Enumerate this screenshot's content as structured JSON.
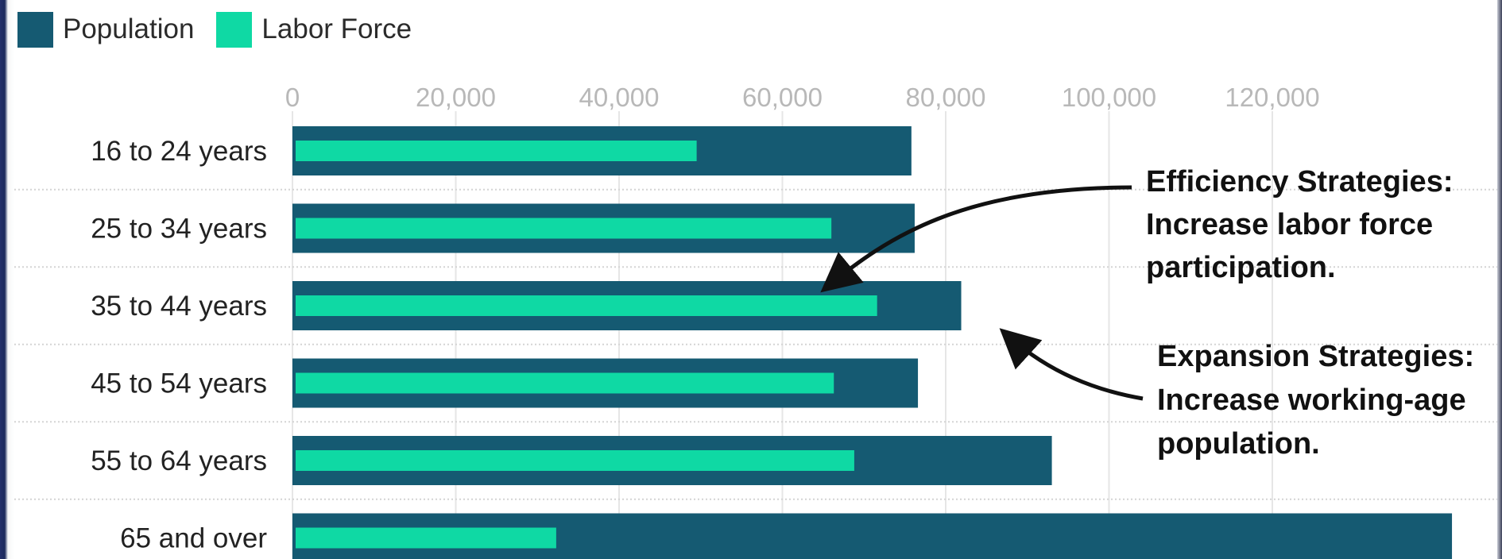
{
  "colors": {
    "population": "#155a72",
    "labor_force": "#0fd9a4"
  },
  "legend": [
    {
      "label": "Population",
      "color": "#155a72"
    },
    {
      "label": "Labor Force",
      "color": "#0fd9a4"
    }
  ],
  "annotations": {
    "efficiency": [
      "Efficiency Strategies:",
      "Increase labor force",
      "participation."
    ],
    "expansion": [
      "Expansion Strategies:",
      "Increase working-age",
      "population."
    ]
  },
  "chart_data": {
    "type": "bar",
    "orientation": "horizontal",
    "title": "",
    "xlabel": "",
    "ylabel": "",
    "xlim": [
      0,
      140000
    ],
    "x_ticks": [
      0,
      20000,
      40000,
      60000,
      80000,
      100000,
      120000
    ],
    "x_tick_labels": [
      "0",
      "20,000",
      "40,000",
      "60,000",
      "80,000",
      "100,000",
      "120,000"
    ],
    "categories": [
      "16 to 24 years",
      "25 to 34 years",
      "35 to 44 years",
      "45 to 54 years",
      "55 to 64 years",
      "65 and over"
    ],
    "series": [
      {
        "name": "Population",
        "values": [
          75800,
          76200,
          81900,
          76600,
          93000,
          142000
        ]
      },
      {
        "name": "Labor Force",
        "values": [
          49500,
          66000,
          71600,
          66300,
          68800,
          32300
        ]
      }
    ],
    "grid": true,
    "legend_position": "top-left"
  }
}
